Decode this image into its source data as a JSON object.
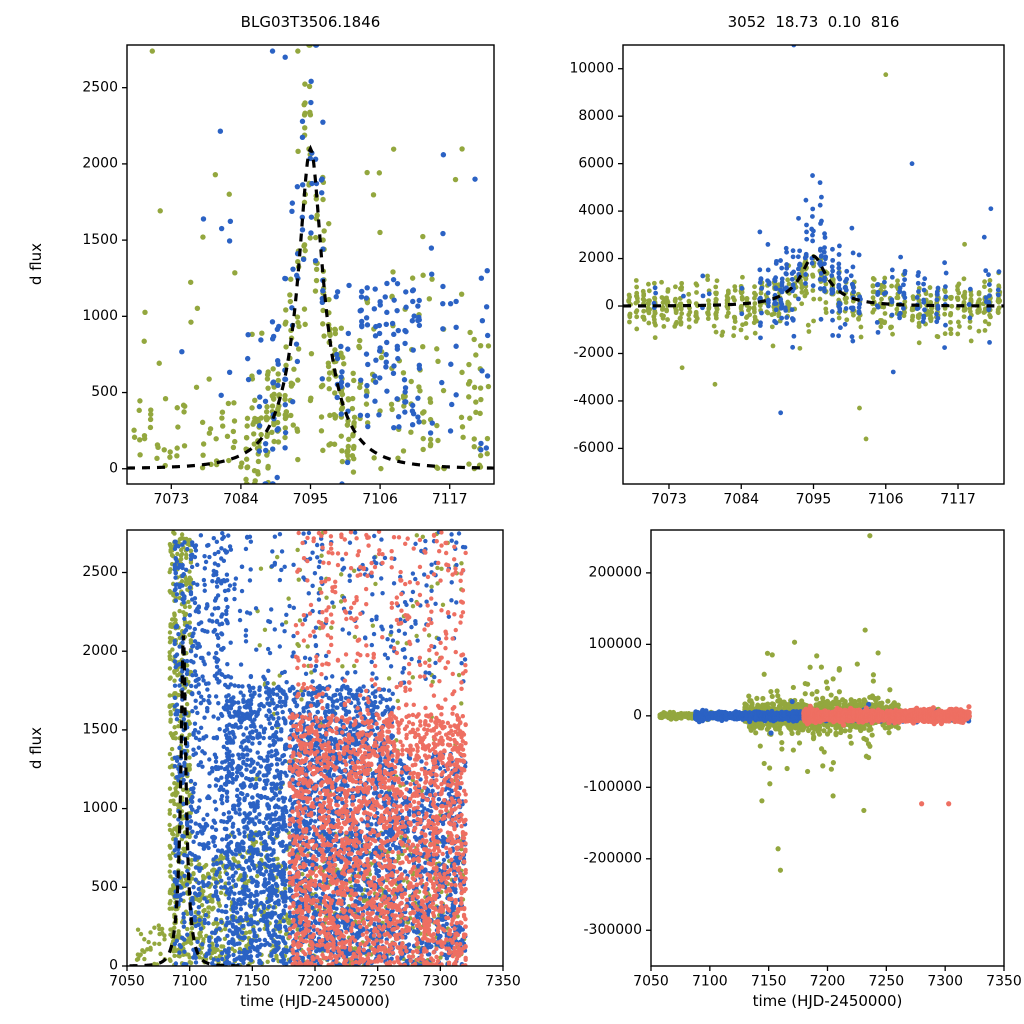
{
  "seed": 1337,
  "colors": {
    "green": "#93a73e",
    "blue": "#2b62c4",
    "red": "#ee6f62",
    "curve": "#000000"
  },
  "chart_data": [
    {
      "type": "scatter",
      "title": "BLG03T3506.1846",
      "xlabel": "",
      "ylabel": "d flux",
      "xlim": [
        7066,
        7124
      ],
      "ylim": [
        -100,
        2780
      ],
      "xticks": [
        7073,
        7084,
        7095,
        7106,
        7117
      ],
      "yticks": [
        0,
        500,
        1000,
        1500,
        2000,
        2500
      ],
      "grid": false,
      "legend": "none",
      "marker_r": 2.7,
      "model": {
        "type": "paczynski",
        "t0": 7095,
        "tE": 7.4,
        "u0": 0.25,
        "peak": 2100,
        "range": [
          7066,
          7124
        ],
        "on_top": true,
        "style": "dashed"
      },
      "series": [
        {
          "name": "set-green",
          "color": "green",
          "clusters": [
            {
              "x0": 7067,
              "x1": 7085,
              "p": 0.75,
              "n": [
                2,
                5
              ],
              "mode": "uniform",
              "y": [
                0,
                480
              ]
            },
            {
              "x0": 7069,
              "x1": 7083,
              "p": 0.3,
              "n": [
                1,
                2
              ],
              "mode": "uniform",
              "y": [
                500,
                2000
              ]
            },
            {
              "x0": 7085,
              "x1": 7102,
              "p": 1.0,
              "n": [
                8,
                15
              ],
              "mode": "model",
              "y": [
                0.55,
                1.45
              ],
              "sigma": 160
            },
            {
              "x0": 7086,
              "x1": 7100,
              "p": 0.8,
              "n": [
                2,
                5
              ],
              "mode": "uniform",
              "y": [
                50,
                900
              ]
            },
            {
              "x0": 7102,
              "x1": 7123,
              "p": 0.85,
              "n": [
                4,
                9
              ],
              "mode": "uniform",
              "y": [
                0,
                1150
              ]
            },
            {
              "x0": 7103,
              "x1": 7122,
              "p": 0.35,
              "n": [
                1,
                2
              ],
              "mode": "uniform",
              "y": [
                1150,
                2150
              ]
            }
          ],
          "extras": [
            [
              7070,
              2740
            ],
            [
              7093,
              2740
            ],
            [
              7078,
              1520
            ]
          ]
        },
        {
          "name": "set-blue",
          "color": "blue",
          "clusters": [
            {
              "x0": 7071,
              "x1": 7086,
              "p": 0.4,
              "n": [
                1,
                3
              ],
              "mode": "uniform",
              "y": [
                150,
                2250
              ]
            },
            {
              "x0": 7087,
              "x1": 7101,
              "p": 0.95,
              "n": [
                5,
                11
              ],
              "mode": "model",
              "y": [
                0.75,
                1.35
              ],
              "sigma": 420
            },
            {
              "x0": 7103,
              "x1": 7113,
              "p": 0.85,
              "n": [
                6,
                12
              ],
              "mode": "uniform",
              "y": [
                260,
                1250
              ]
            },
            {
              "x0": 7113,
              "x1": 7123,
              "p": 0.6,
              "n": [
                3,
                7
              ],
              "mode": "uniform",
              "y": [
                50,
                1550
              ]
            }
          ],
          "extras": [
            [
              7089,
              2740
            ],
            [
              7091,
              2700
            ],
            [
              7116,
              2060
            ],
            [
              7121,
              1900
            ],
            [
              7122,
              1250
            ]
          ]
        }
      ]
    },
    {
      "type": "scatter",
      "title": "3052  18.73  0.10  816",
      "xlabel": "",
      "ylabel": "",
      "xlim": [
        7066,
        7124
      ],
      "ylim": [
        -7500,
        11000
      ],
      "xticks": [
        7073,
        7084,
        7095,
        7106,
        7117
      ],
      "yticks": [
        -6000,
        -4000,
        -2000,
        0,
        2000,
        4000,
        6000,
        8000,
        10000
      ],
      "grid": false,
      "legend": "none",
      "marker_r": 2.4,
      "model": {
        "type": "paczynski",
        "t0": 7095,
        "tE": 7.4,
        "u0": 0.25,
        "peak": 2100,
        "range": [
          7066,
          7124
        ],
        "on_top": true,
        "style": "dashed"
      },
      "series": [
        {
          "name": "set-green",
          "color": "green",
          "clusters": [
            {
              "x0": 7067,
              "x1": 7123,
              "p": 0.95,
              "n": [
                8,
                16
              ],
              "mode": "model",
              "y": [
                0.5,
                1.2
              ],
              "sigma": 480
            },
            {
              "x0": 7070,
              "x1": 7120,
              "p": 0.4,
              "n": [
                1,
                3
              ],
              "mode": "normal",
              "y": [
                -700,
                0
              ],
              "sigma": 500
            }
          ],
          "extras": [
            [
              7106,
              9750
            ],
            [
              7103,
              -5600
            ],
            [
              7102,
              -4300
            ],
            [
              7080,
              -3300
            ],
            [
              7075,
              -2600
            ],
            [
              7118,
              2600
            ]
          ]
        },
        {
          "name": "set-blue",
          "color": "blue",
          "clusters": [
            {
              "x0": 7087,
              "x1": 7101,
              "p": 0.95,
              "n": [
                8,
                18
              ],
              "mode": "model",
              "y": [
                0.8,
                1.6
              ],
              "sigma": 900
            },
            {
              "x0": 7101,
              "x1": 7123,
              "p": 0.65,
              "n": [
                3,
                9
              ],
              "mode": "normal",
              "y": [
                400,
                0
              ],
              "sigma": 800
            },
            {
              "x0": 7068,
              "x1": 7087,
              "p": 0.3,
              "n": [
                1,
                4
              ],
              "mode": "normal",
              "y": [
                300,
                0
              ],
              "sigma": 600
            }
          ],
          "extras": [
            [
              7092,
              11300
            ],
            [
              7090,
              -4500
            ],
            [
              7110,
              6000
            ],
            [
              7122,
              4100
            ],
            [
              7121,
              2900
            ],
            [
              7096,
              5200
            ]
          ]
        }
      ]
    },
    {
      "type": "scatter",
      "title": "",
      "xlabel": "time (HJD-2450000)",
      "ylabel": "d flux",
      "xlim": [
        7050,
        7350
      ],
      "ylim": [
        0,
        2770
      ],
      "xticks": [
        7050,
        7100,
        7150,
        7200,
        7250,
        7300,
        7350
      ],
      "yticks": [
        0,
        500,
        1000,
        1500,
        2000,
        2500
      ],
      "grid": false,
      "legend": "none",
      "marker_r": 2.2,
      "model": {
        "type": "paczynski",
        "t0": 7095,
        "tE": 7.4,
        "u0": 0.25,
        "peak": 2100,
        "range": [
          7052,
          7148
        ],
        "on_top": true,
        "style": "dashed"
      },
      "series": [
        {
          "name": "set-green",
          "color": "green",
          "clusters": [
            {
              "x0": 7058,
              "x1": 7084,
              "p": 0.5,
              "n": [
                1,
                3
              ],
              "mode": "uniform",
              "y": [
                0,
                260
              ]
            },
            {
              "x0": 7084,
              "x1": 7101,
              "p": 1.0,
              "n": [
                18,
                36
              ],
              "mode": "uniform",
              "y": [
                0,
                2760
              ]
            },
            {
              "x0": 7101,
              "x1": 7125,
              "p": 0.9,
              "n": [
                4,
                10
              ],
              "mode": "uniform",
              "y": [
                0,
                700
              ]
            },
            {
              "x0": 7125,
              "x1": 7320,
              "p": 0.75,
              "n": [
                2,
                6
              ],
              "mode": "uniform",
              "y": [
                0,
                850
              ]
            },
            {
              "x0": 7150,
              "x1": 7320,
              "p": 0.35,
              "n": [
                1,
                3
              ],
              "mode": "uniform",
              "y": [
                850,
                2760
              ]
            }
          ],
          "extras": []
        },
        {
          "name": "set-blue",
          "color": "blue",
          "clusters": [
            {
              "x0": 7088,
              "x1": 7130,
              "p": 0.95,
              "n": [
                8,
                22
              ],
              "mode": "uniform",
              "y": [
                0,
                2760
              ]
            },
            {
              "x0": 7130,
              "x1": 7262,
              "p": 0.97,
              "n": [
                12,
                28
              ],
              "mode": "uniform",
              "y": [
                0,
                1780
              ]
            },
            {
              "x0": 7130,
              "x1": 7320,
              "p": 0.5,
              "n": [
                1,
                4
              ],
              "mode": "uniform",
              "y": [
                1780,
                2760
              ]
            },
            {
              "x0": 7262,
              "x1": 7320,
              "p": 0.9,
              "n": [
                6,
                16
              ],
              "mode": "uniform",
              "y": [
                0,
                1350
              ]
            }
          ],
          "extras": []
        },
        {
          "name": "set-red",
          "color": "red",
          "clusters": [
            {
              "x0": 7180,
              "x1": 7320,
              "p": 0.97,
              "n": [
                10,
                24
              ],
              "mode": "uniform",
              "y": [
                0,
                1600
              ]
            },
            {
              "x0": 7185,
              "x1": 7320,
              "p": 0.55,
              "n": [
                2,
                6
              ],
              "mode": "uniform",
              "y": [
                1600,
                2760
              ]
            }
          ],
          "extras": []
        }
      ]
    },
    {
      "type": "scatter",
      "title": "",
      "xlabel": "time (HJD-2450000)",
      "ylabel": "",
      "xlim": [
        7050,
        7350
      ],
      "ylim": [
        -350000,
        260000
      ],
      "xticks": [
        7050,
        7100,
        7150,
        7200,
        7250,
        7300,
        7350
      ],
      "yticks": [
        -300000,
        -200000,
        -100000,
        0,
        100000,
        200000
      ],
      "grid": false,
      "legend": "none",
      "marker_r": 2.6,
      "model": {
        "type": "paczynski",
        "t0": 7095,
        "tE": 7.4,
        "u0": 0.25,
        "peak": 2100,
        "range": [
          7080,
          7135
        ],
        "on_top": false,
        "style": "dashed"
      },
      "series": [
        {
          "name": "set-green",
          "color": "green",
          "clusters": [
            {
              "x0": 7058,
              "x1": 7130,
              "p": 0.9,
              "n": [
                3,
                7
              ],
              "mode": "normal",
              "y": [
                0,
                0
              ],
              "sigma": 1800
            },
            {
              "x0": 7130,
              "x1": 7260,
              "p": 0.95,
              "n": [
                6,
                14
              ],
              "mode": "normal",
              "y": [
                0,
                0
              ],
              "sigma": 9000
            },
            {
              "x0": 7140,
              "x1": 7255,
              "p": 0.4,
              "n": [
                1,
                3
              ],
              "mode": "normal",
              "y": [
                0,
                0
              ],
              "sigma": 45000
            },
            {
              "x0": 7260,
              "x1": 7320,
              "p": 0.75,
              "n": [
                2,
                5
              ],
              "mode": "normal",
              "y": [
                0,
                0
              ],
              "sigma": 3500
            }
          ],
          "extras": [
            [
              7236,
              252000
            ],
            [
              7172,
              103000
            ],
            [
              7160,
              -216000
            ],
            [
              7158,
              -186000
            ],
            [
              7151,
              -95000
            ],
            [
              7243,
              88000
            ],
            [
              7210,
              64000
            ],
            [
              7196,
              -70000
            ],
            [
              7232,
              120000
            ]
          ]
        },
        {
          "name": "set-blue",
          "color": "blue",
          "clusters": [
            {
              "x0": 7088,
              "x1": 7320,
              "p": 0.9,
              "n": [
                5,
                12
              ],
              "mode": "normal",
              "y": [
                0,
                0
              ],
              "sigma": 2600
            }
          ],
          "extras": [
            [
              7152,
              -24000
            ],
            [
              7170,
              20000
            ],
            [
              7235,
              16000
            ]
          ]
        },
        {
          "name": "set-red",
          "color": "red",
          "clusters": [
            {
              "x0": 7180,
              "x1": 7320,
              "p": 0.95,
              "n": [
                7,
                16
              ],
              "mode": "normal",
              "y": [
                0,
                0
              ],
              "sigma": 3800
            }
          ],
          "extras": [
            [
              7280,
              -123000
            ],
            [
              7303,
              -123000
            ]
          ]
        }
      ]
    }
  ]
}
